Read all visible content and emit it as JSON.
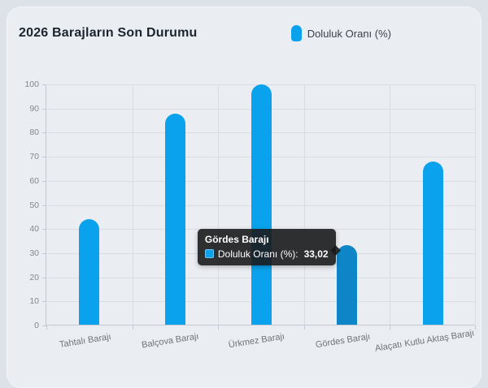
{
  "header": {
    "title": "2026 Barajların Son Durumu"
  },
  "legend": {
    "label": "Doluluk Oranı (%)",
    "color": "#0aa2ec"
  },
  "tooltip": {
    "title": "Gördes Barajı",
    "series_label": "Doluluk Oranı (%):",
    "value": "33,02"
  },
  "chart_data": {
    "type": "bar",
    "title": "2026 Barajların Son Durumu",
    "xlabel": "",
    "ylabel": "",
    "categories": [
      "Tahtalı Barajı",
      "Balçova Barajı",
      "Ürkmez Barajı",
      "Gördes Barajı",
      "Alaçatı Kutlu Aktaş Barajı"
    ],
    "series": [
      {
        "name": "Doluluk Oranı (%)",
        "values": [
          43.7,
          87.5,
          99.7,
          33.02,
          67.6
        ]
      }
    ],
    "ylim": [
      0,
      100
    ],
    "yticks": [
      "0",
      "10",
      "20",
      "30",
      "40",
      "50",
      "60",
      "70",
      "80",
      "90",
      "100"
    ],
    "grid": true,
    "legend_position": "top-right",
    "bar_color": "#0aa2ec",
    "hover_bar_color": "#0e85c6",
    "hovered_index": 3,
    "hovered_value_display": "33,02"
  }
}
